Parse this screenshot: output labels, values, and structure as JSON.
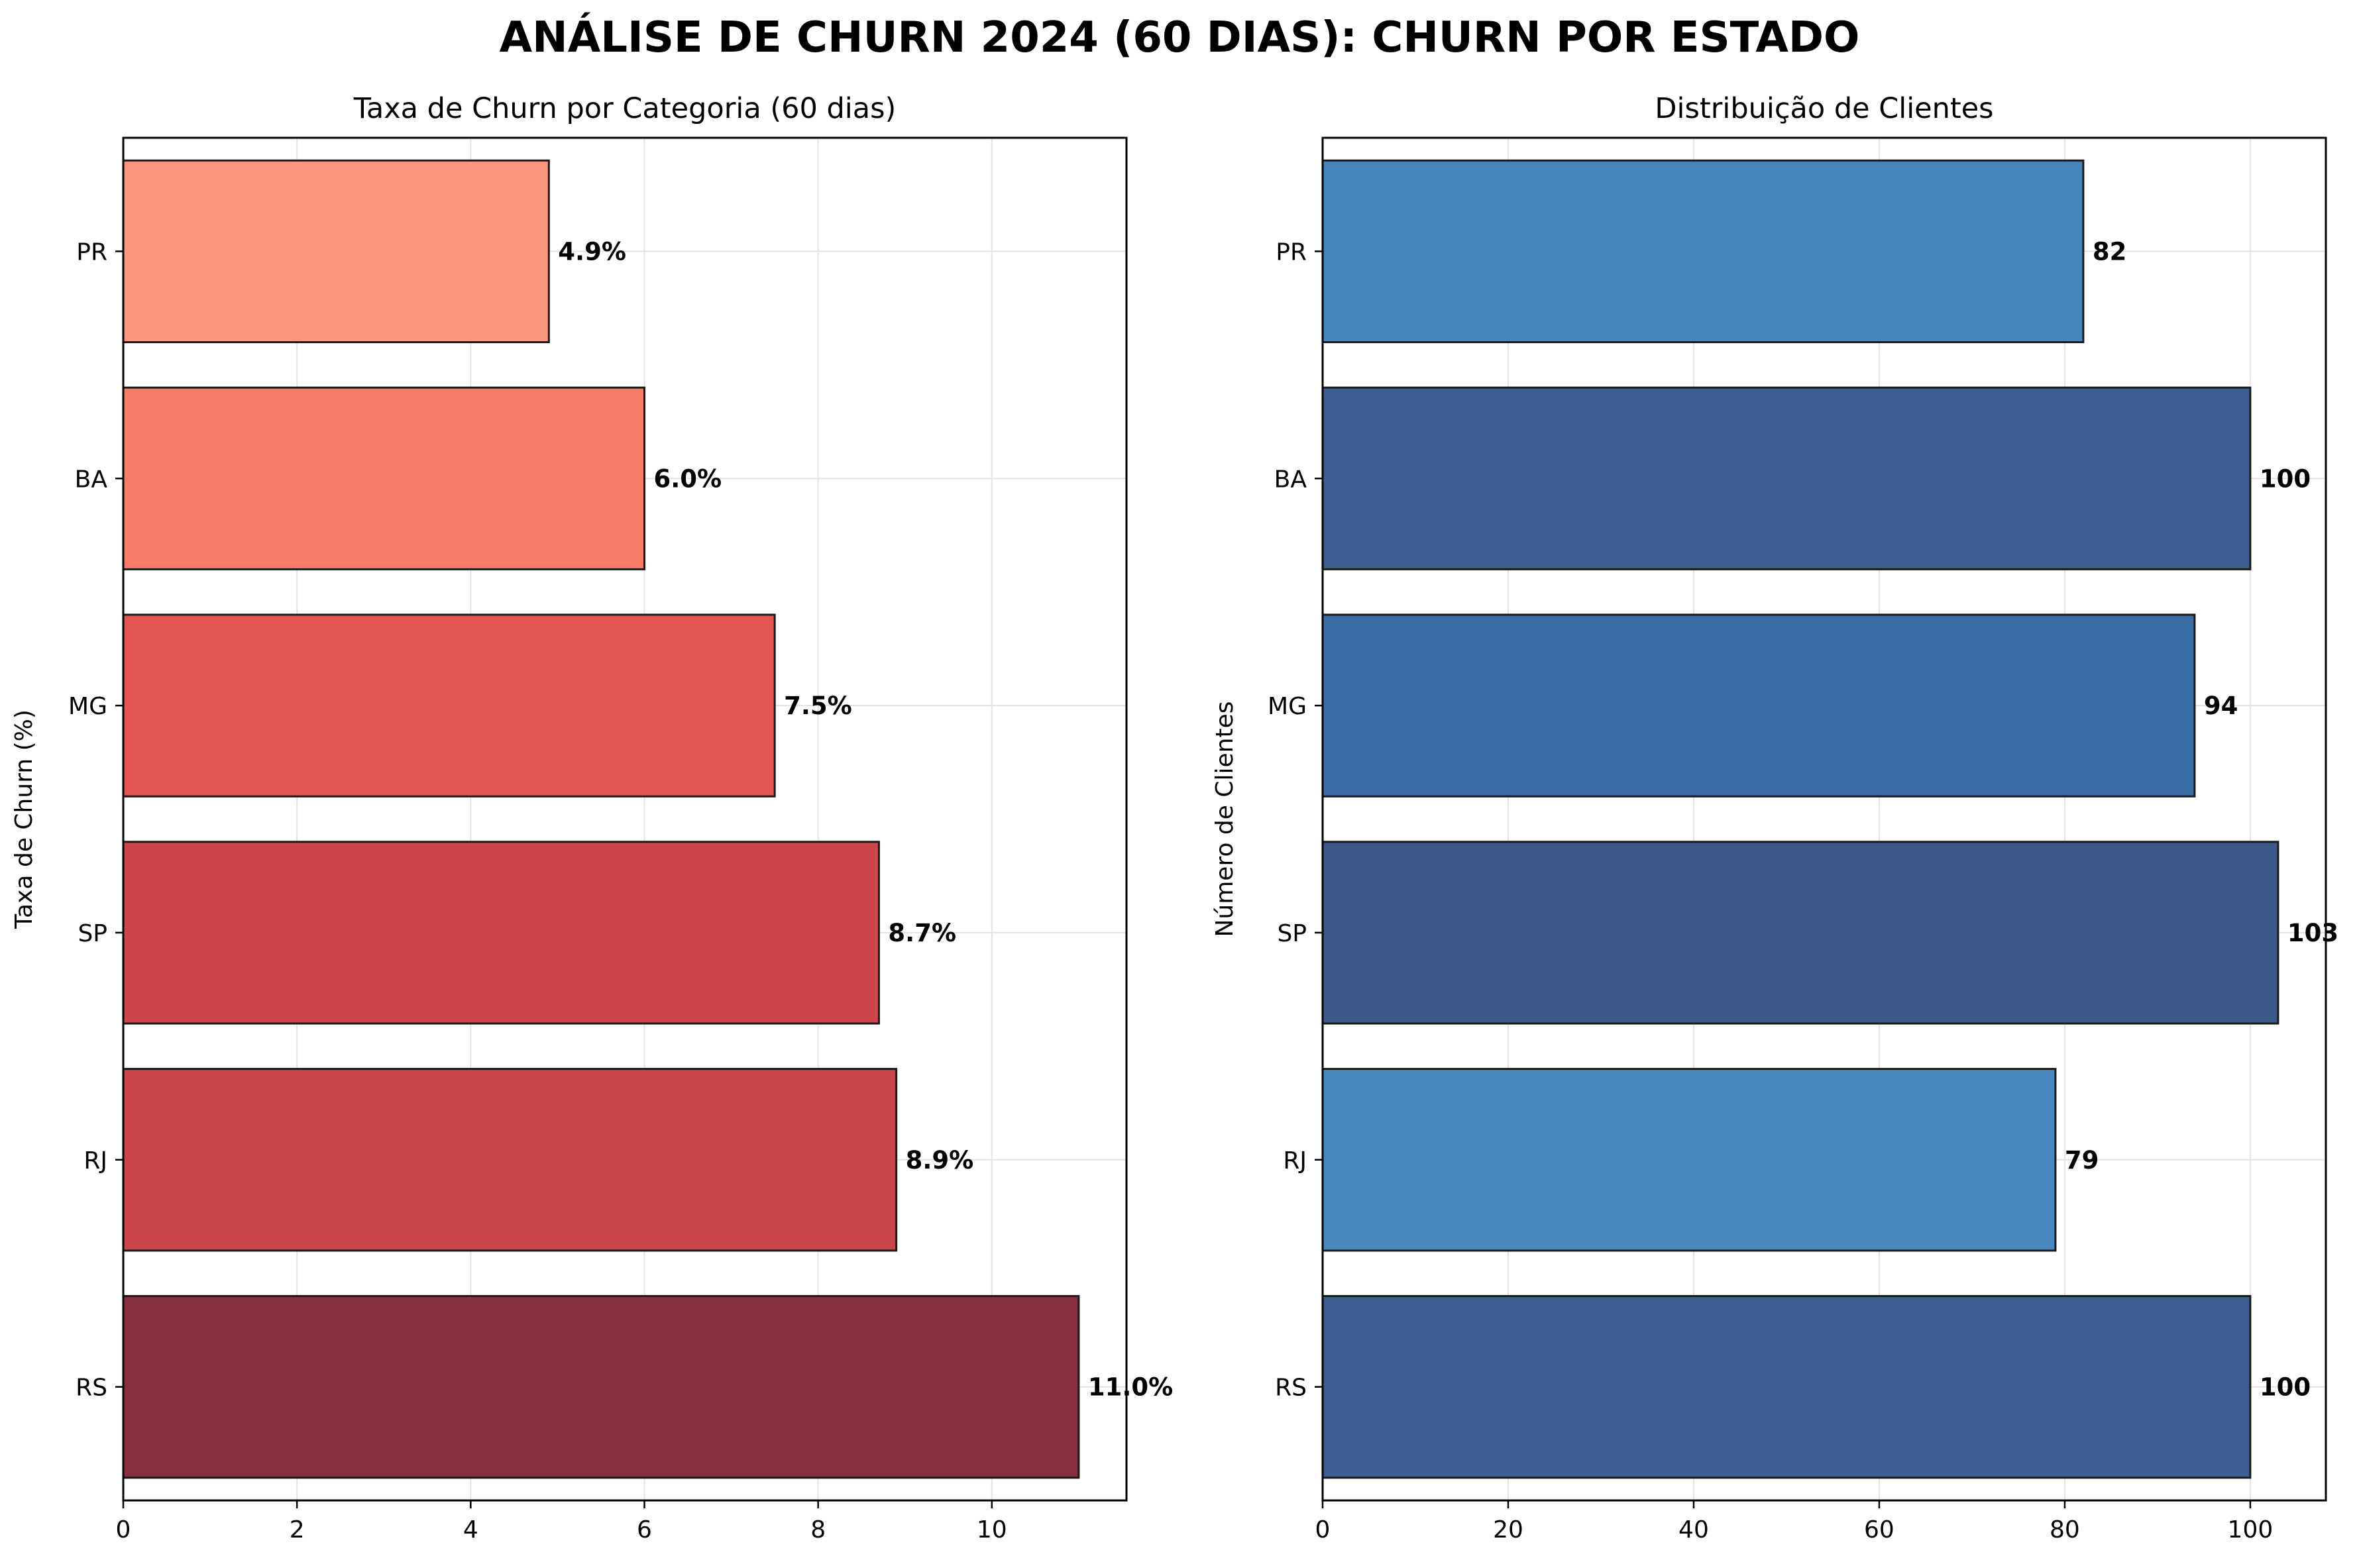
{
  "title": "ANÁLISE DE CHURN 2024 (60 DIAS): CHURN POR ESTADO",
  "chart_data": [
    {
      "type": "bar",
      "orientation": "horizontal",
      "title": "Taxa de Churn por Categoria (60 dias)",
      "ylabel": "Taxa de Churn (%)",
      "xlabel": "",
      "categories": [
        "PR",
        "BA",
        "MG",
        "SP",
        "RJ",
        "RS"
      ],
      "values": [
        4.9,
        6.0,
        7.5,
        8.7,
        8.9,
        11.0
      ],
      "value_labels": [
        "4.9%",
        "6.0%",
        "7.5%",
        "8.7%",
        "8.9%",
        "11.0%"
      ],
      "colors": [
        "#fa967d",
        "#f77b67",
        "#e45651",
        "#cd454a",
        "#c8454a",
        "#84303e"
      ],
      "xlim": [
        0,
        11.55
      ],
      "xticks": [
        0,
        2,
        4,
        6,
        8,
        10
      ],
      "grid": true
    },
    {
      "type": "bar",
      "orientation": "horizontal",
      "title": "Distribuição de Clientes",
      "ylabel": "Número de Clientes",
      "xlabel": "",
      "categories": [
        "PR",
        "BA",
        "MG",
        "SP",
        "RJ",
        "RS"
      ],
      "values": [
        82,
        100,
        94,
        103,
        79,
        100
      ],
      "value_labels": [
        "82",
        "100",
        "94",
        "103",
        "79",
        "100"
      ],
      "colors": [
        "#4585ba",
        "#3b5f90",
        "#396da3",
        "#3b5a88",
        "#4a88c0",
        "#3b5f90"
      ],
      "xlim": [
        0,
        108.15
      ],
      "xticks": [
        0,
        20,
        40,
        60,
        80,
        100
      ],
      "grid": true
    }
  ]
}
